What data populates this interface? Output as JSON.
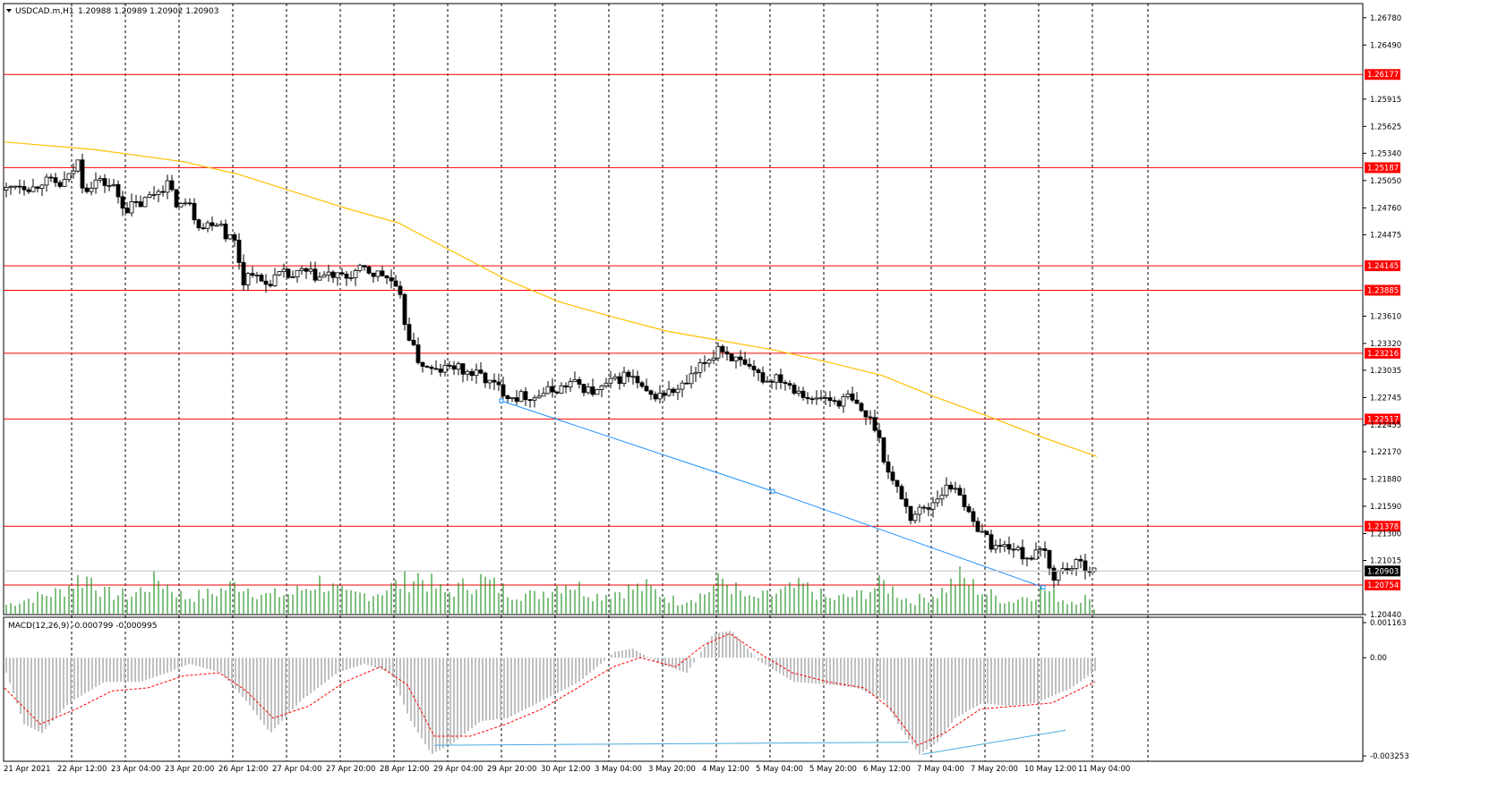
{
  "header": {
    "symbol": "USDCAD.m,H1",
    "ohlc": "1.20988 1.20989 1.20902 1.20903"
  },
  "macd_header": "MACD(12,26,9) -0.000799 -0.000995",
  "colors": {
    "background": "#ffffff",
    "candles": "#000000",
    "grid": "#000000",
    "level_lines": "#ff0000",
    "level_label_bg": "#ff0000",
    "level_label_text": "#ffffff",
    "moving_average": "#ffc000",
    "trendline": "#1e90ff",
    "volume": "#008000",
    "macd_histogram": "#c0c0c0",
    "macd_signal": "#ff0000",
    "current_price_bg": "#000000"
  },
  "chart_data": [
    {
      "type": "candlestick",
      "instrument": "USDCAD.m",
      "timeframe": "H1",
      "ylim": [
        1.2044,
        1.2693
      ],
      "price_ticks": [
        "1.26780",
        "1.26490",
        "1.25915",
        "1.25625",
        "1.25340",
        "1.25050",
        "1.24760",
        "1.24475",
        "1.23610",
        "1.23320",
        "1.23035",
        "1.22745",
        "1.22455",
        "1.22170",
        "1.21880",
        "1.21590",
        "1.21300",
        "1.21015",
        "1.20440"
      ],
      "x_labels": [
        "21 Apr 2021",
        "22 Apr 12:00",
        "23 Apr 04:00",
        "23 Apr 20:00",
        "26 Apr 12:00",
        "27 Apr 04:00",
        "27 Apr 20:00",
        "28 Apr 12:00",
        "29 Apr 04:00",
        "29 Apr 20:00",
        "30 Apr 12:00",
        "3 May 04:00",
        "3 May 20:00",
        "4 May 12:00",
        "5 May 04:00",
        "5 May 20:00",
        "6 May 12:00",
        "7 May 04:00",
        "7 May 20:00",
        "10 May 12:00",
        "11 May 04:00"
      ],
      "horizontal_levels": [
        "1.26177",
        "1.25187",
        "1.24145",
        "1.23885",
        "1.23216",
        "1.22517",
        "1.21378",
        "1.20754"
      ],
      "current_price": "1.20903",
      "close_path": [
        [
          0,
          1.2495
        ],
        [
          10,
          1.2502
        ],
        [
          20,
          1.25
        ],
        [
          30,
          1.2497
        ],
        [
          40,
          1.2505
        ],
        [
          50,
          1.2503
        ],
        [
          60,
          1.25
        ],
        [
          70,
          1.2508
        ],
        [
          80,
          1.2525
        ],
        [
          85,
          1.2502
        ],
        [
          90,
          1.2498
        ],
        [
          100,
          1.2505
        ],
        [
          110,
          1.2502
        ],
        [
          120,
          1.2498
        ],
        [
          125,
          1.2488
        ],
        [
          130,
          1.248
        ],
        [
          135,
          1.2475
        ],
        [
          140,
          1.2478
        ],
        [
          150,
          1.248
        ],
        [
          160,
          1.2488
        ],
        [
          170,
          1.2495
        ],
        [
          180,
          1.2502
        ],
        [
          185,
          1.249
        ],
        [
          190,
          1.2482
        ],
        [
          200,
          1.2478
        ],
        [
          205,
          1.2485
        ],
        [
          210,
          1.2468
        ],
        [
          215,
          1.246
        ],
        [
          220,
          1.2455
        ],
        [
          230,
          1.2462
        ],
        [
          240,
          1.246
        ],
        [
          245,
          1.2448
        ],
        [
          250,
          1.2445
        ],
        [
          255,
          1.244
        ],
        [
          260,
          1.242
        ],
        [
          265,
          1.2398
        ],
        [
          270,
          1.2405
        ],
        [
          275,
          1.241
        ],
        [
          280,
          1.24
        ],
        [
          290,
          1.2395
        ],
        [
          300,
          1.2402
        ],
        [
          310,
          1.2405
        ],
        [
          320,
          1.2402
        ],
        [
          330,
          1.2408
        ],
        [
          340,
          1.2405
        ],
        [
          350,
          1.2402
        ],
        [
          360,
          1.2405
        ],
        [
          370,
          1.2402
        ],
        [
          380,
          1.2402
        ],
        [
          390,
          1.2408
        ],
        [
          400,
          1.241
        ],
        [
          410,
          1.2406
        ],
        [
          420,
          1.2405
        ],
        [
          430,
          1.2398
        ],
        [
          435,
          1.2388
        ],
        [
          440,
          1.2378
        ],
        [
          445,
          1.2355
        ],
        [
          450,
          1.234
        ],
        [
          455,
          1.2325
        ],
        [
          460,
          1.2315
        ],
        [
          465,
          1.231
        ],
        [
          470,
          1.2305
        ],
        [
          480,
          1.2302
        ],
        [
          490,
          1.2305
        ],
        [
          500,
          1.2308
        ],
        [
          510,
          1.2302
        ],
        [
          520,
          1.23
        ],
        [
          530,
          1.2298
        ],
        [
          540,
          1.229
        ],
        [
          550,
          1.2285
        ],
        [
          560,
          1.2278
        ],
        [
          570,
          1.2275
        ],
        [
          580,
          1.2277
        ],
        [
          590,
          1.2275
        ],
        [
          600,
          1.228
        ],
        [
          610,
          1.2282
        ],
        [
          620,
          1.2285
        ],
        [
          630,
          1.229
        ],
        [
          640,
          1.2288
        ],
        [
          650,
          1.2282
        ],
        [
          660,
          1.228
        ],
        [
          670,
          1.2288
        ],
        [
          680,
          1.2292
        ],
        [
          690,
          1.2298
        ],
        [
          700,
          1.2295
        ],
        [
          710,
          1.2282
        ],
        [
          720,
          1.2275
        ],
        [
          730,
          1.2278
        ],
        [
          740,
          1.228
        ],
        [
          750,
          1.2282
        ],
        [
          760,
          1.229
        ],
        [
          770,
          1.23
        ],
        [
          780,
          1.2312
        ],
        [
          790,
          1.232
        ],
        [
          795,
          1.233
        ],
        [
          800,
          1.2325
        ],
        [
          810,
          1.2318
        ],
        [
          820,
          1.231
        ],
        [
          830,
          1.2302
        ],
        [
          840,
          1.2298
        ],
        [
          850,
          1.2292
        ],
        [
          860,
          1.2298
        ],
        [
          870,
          1.2292
        ],
        [
          880,
          1.2285
        ],
        [
          890,
          1.228
        ],
        [
          900,
          1.227
        ],
        [
          910,
          1.2275
        ],
        [
          920,
          1.2272
        ],
        [
          930,
          1.227
        ],
        [
          940,
          1.2275
        ],
        [
          950,
          1.2265
        ],
        [
          960,
          1.2255
        ],
        [
          970,
          1.2245
        ],
        [
          975,
          1.223
        ],
        [
          980,
          1.2212
        ],
        [
          985,
          1.2195
        ],
        [
          990,
          1.2185
        ],
        [
          1000,
          1.217
        ],
        [
          1005,
          1.2158
        ],
        [
          1010,
          1.2148
        ],
        [
          1020,
          1.2155
        ],
        [
          1030,
          1.2158
        ],
        [
          1040,
          1.217
        ],
        [
          1050,
          1.2178
        ],
        [
          1060,
          1.218
        ],
        [
          1065,
          1.2175
        ],
        [
          1070,
          1.2162
        ],
        [
          1075,
          1.2148
        ],
        [
          1080,
          1.214
        ],
        [
          1090,
          1.2135
        ],
        [
          1095,
          1.2125
        ],
        [
          1100,
          1.2118
        ],
        [
          1110,
          1.2115
        ],
        [
          1120,
          1.2118
        ],
        [
          1130,
          1.211
        ],
        [
          1140,
          1.2105
        ],
        [
          1150,
          1.2108
        ],
        [
          1160,
          1.211
        ],
        [
          1165,
          1.2092
        ],
        [
          1170,
          1.2085
        ],
        [
          1180,
          1.2092
        ],
        [
          1190,
          1.2095
        ],
        [
          1200,
          1.2098
        ],
        [
          1210,
          1.2094
        ],
        [
          1218,
          1.209
        ]
      ],
      "moving_average": [
        [
          0,
          1.2546
        ],
        [
          100,
          1.2538
        ],
        [
          200,
          1.2525
        ],
        [
          260,
          1.2512
        ],
        [
          320,
          1.2494
        ],
        [
          380,
          1.2476
        ],
        [
          440,
          1.246
        ],
        [
          500,
          1.243
        ],
        [
          560,
          1.24
        ],
        [
          620,
          1.2376
        ],
        [
          680,
          1.236
        ],
        [
          740,
          1.2345
        ],
        [
          800,
          1.2335
        ],
        [
          860,
          1.2325
        ],
        [
          920,
          1.2312
        ],
        [
          980,
          1.2298
        ],
        [
          1040,
          1.2275
        ],
        [
          1100,
          1.2254
        ],
        [
          1160,
          1.2232
        ],
        [
          1220,
          1.2212
        ]
      ],
      "trendline": [
        [
          555,
          1.2271
        ],
        [
          858,
          1.2175
        ],
        [
          1160,
          1.2073
        ]
      ],
      "volume": [
        [
          0,
          0.22
        ],
        [
          30,
          0.4
        ],
        [
          60,
          0.55
        ],
        [
          80,
          0.85
        ],
        [
          95,
          0.9
        ],
        [
          110,
          0.5
        ],
        [
          140,
          0.45
        ],
        [
          170,
          0.85
        ],
        [
          200,
          0.4
        ],
        [
          230,
          0.5
        ],
        [
          260,
          0.75
        ],
        [
          290,
          0.45
        ],
        [
          320,
          0.5
        ],
        [
          350,
          0.8
        ],
        [
          380,
          0.45
        ],
        [
          410,
          0.5
        ],
        [
          440,
          0.75
        ],
        [
          460,
          0.95
        ],
        [
          490,
          0.5
        ],
        [
          530,
          0.85
        ],
        [
          560,
          0.55
        ],
        [
          590,
          0.45
        ],
        [
          625,
          0.8
        ],
        [
          660,
          0.45
        ],
        [
          690,
          0.6
        ],
        [
          715,
          0.65
        ],
        [
          750,
          0.3
        ],
        [
          780,
          0.5
        ],
        [
          800,
          0.85
        ],
        [
          830,
          0.35
        ],
        [
          860,
          0.5
        ],
        [
          890,
          0.68
        ],
        [
          920,
          0.35
        ],
        [
          950,
          0.45
        ],
        [
          980,
          0.75
        ],
        [
          1010,
          0.3
        ],
        [
          1040,
          0.5
        ],
        [
          1065,
          0.9
        ],
        [
          1090,
          0.55
        ],
        [
          1120,
          0.3
        ],
        [
          1160,
          0.6
        ],
        [
          1185,
          0.3
        ],
        [
          1205,
          0.4
        ],
        [
          1218,
          0.1
        ]
      ],
      "macd": {
        "ticks": [
          "0.001163",
          "0.00",
          "-0.003253"
        ],
        "ylim": [
          -0.003253,
          0.001163
        ],
        "histogram": [
          [
            0,
            -0.0005
          ],
          [
            20,
            -0.0022
          ],
          [
            40,
            -0.0025
          ],
          [
            70,
            -0.0015
          ],
          [
            110,
            -0.0008
          ],
          [
            150,
            -0.0008
          ],
          [
            180,
            -0.0005
          ],
          [
            205,
            -0.0002
          ],
          [
            240,
            -0.0005
          ],
          [
            270,
            -0.0015
          ],
          [
            295,
            -0.0025
          ],
          [
            330,
            -0.0014
          ],
          [
            370,
            -0.0005
          ],
          [
            400,
            -0.0002
          ],
          [
            430,
            -0.0005
          ],
          [
            450,
            -0.002
          ],
          [
            475,
            -0.0032
          ],
          [
            500,
            -0.0028
          ],
          [
            530,
            -0.0021
          ],
          [
            560,
            -0.002
          ],
          [
            600,
            -0.0014
          ],
          [
            640,
            -0.0008
          ],
          [
            680,
            0.0002
          ],
          [
            700,
            0.0003
          ],
          [
            730,
            -0.0002
          ],
          [
            760,
            -0.0005
          ],
          [
            790,
            0.0008
          ],
          [
            810,
            0.0009
          ],
          [
            840,
            -0.0001
          ],
          [
            880,
            -0.0008
          ],
          [
            920,
            -0.0009
          ],
          [
            950,
            -0.001
          ],
          [
            980,
            -0.0014
          ],
          [
            1000,
            -0.0024
          ],
          [
            1020,
            -0.0032
          ],
          [
            1040,
            -0.0028
          ],
          [
            1060,
            -0.002
          ],
          [
            1090,
            -0.0015
          ],
          [
            1120,
            -0.0016
          ],
          [
            1150,
            -0.0015
          ],
          [
            1190,
            -0.001
          ],
          [
            1218,
            -0.0004
          ]
        ],
        "signal": [
          [
            0,
            -0.001
          ],
          [
            40,
            -0.0022
          ],
          [
            80,
            -0.0017
          ],
          [
            120,
            -0.0011
          ],
          [
            160,
            -0.001
          ],
          [
            200,
            -0.0006
          ],
          [
            240,
            -0.0005
          ],
          [
            270,
            -0.0011
          ],
          [
            300,
            -0.002
          ],
          [
            340,
            -0.0016
          ],
          [
            380,
            -0.0008
          ],
          [
            420,
            -0.0003
          ],
          [
            450,
            -0.0009
          ],
          [
            480,
            -0.0026
          ],
          [
            520,
            -0.0026
          ],
          [
            560,
            -0.0022
          ],
          [
            600,
            -0.0017
          ],
          [
            640,
            -0.001
          ],
          [
            680,
            -0.0003
          ],
          [
            710,
            0.0
          ],
          [
            750,
            -0.0003
          ],
          [
            780,
            0.0004
          ],
          [
            810,
            0.0008
          ],
          [
            840,
            0.0002
          ],
          [
            880,
            -0.0005
          ],
          [
            920,
            -0.0008
          ],
          [
            960,
            -0.001
          ],
          [
            990,
            -0.0017
          ],
          [
            1020,
            -0.0029
          ],
          [
            1050,
            -0.0025
          ],
          [
            1090,
            -0.0017
          ],
          [
            1130,
            -0.0016
          ],
          [
            1170,
            -0.0015
          ],
          [
            1218,
            -0.0008
          ]
        ],
        "trendlines": [
          [
            [
              480,
              -0.0029
            ],
            [
              1010,
              -0.0028
            ]
          ],
          [
            [
              1025,
              -0.0032
            ],
            [
              1185,
              -0.0024
            ]
          ]
        ]
      }
    }
  ]
}
